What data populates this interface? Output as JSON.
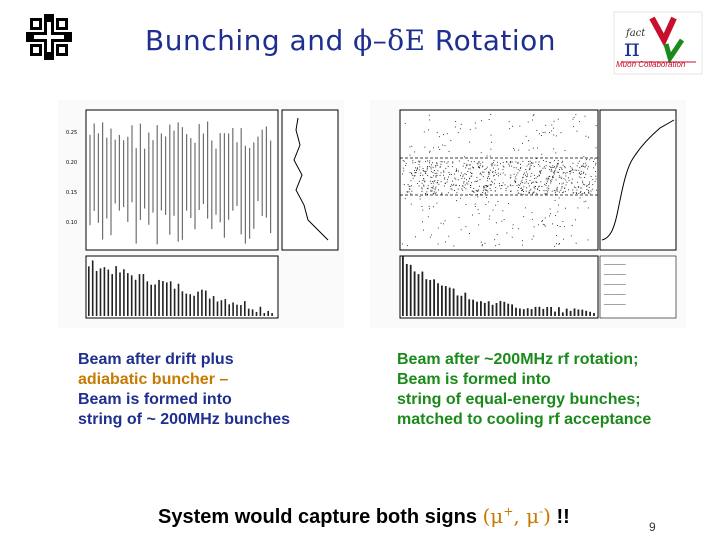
{
  "title": {
    "text_before": "Bunching and ",
    "symbol": "ϕ–δE",
    "text_after": " Rotation"
  },
  "logos": {
    "left": "fermilab-logo",
    "right_label": "Muon Collaboration"
  },
  "left_caption": {
    "line1": "Beam after drift plus",
    "line2": "adiabatic buncher –",
    "line3": "Beam is formed into",
    "line4": "string of ~ 200MHz bunches"
  },
  "right_caption": {
    "line1": "Beam after ~200MHz rf rotation;",
    "line2": "Beam is formed into",
    "line3": "string of equal-energy bunches;",
    "line4": "matched to cooling rf acceptance"
  },
  "bottom": {
    "text": "System would capture both signs ",
    "mu_plus": "(μ",
    "plus": "+",
    "comma": ", μ",
    "minus": "-",
    "close": ")",
    "bang": " !!"
  },
  "page_number": "9",
  "colors": {
    "title": "#1f2f8f",
    "green": "#1a8a1a",
    "orange": "#c77a00",
    "logo_red": "#c8102e"
  }
}
